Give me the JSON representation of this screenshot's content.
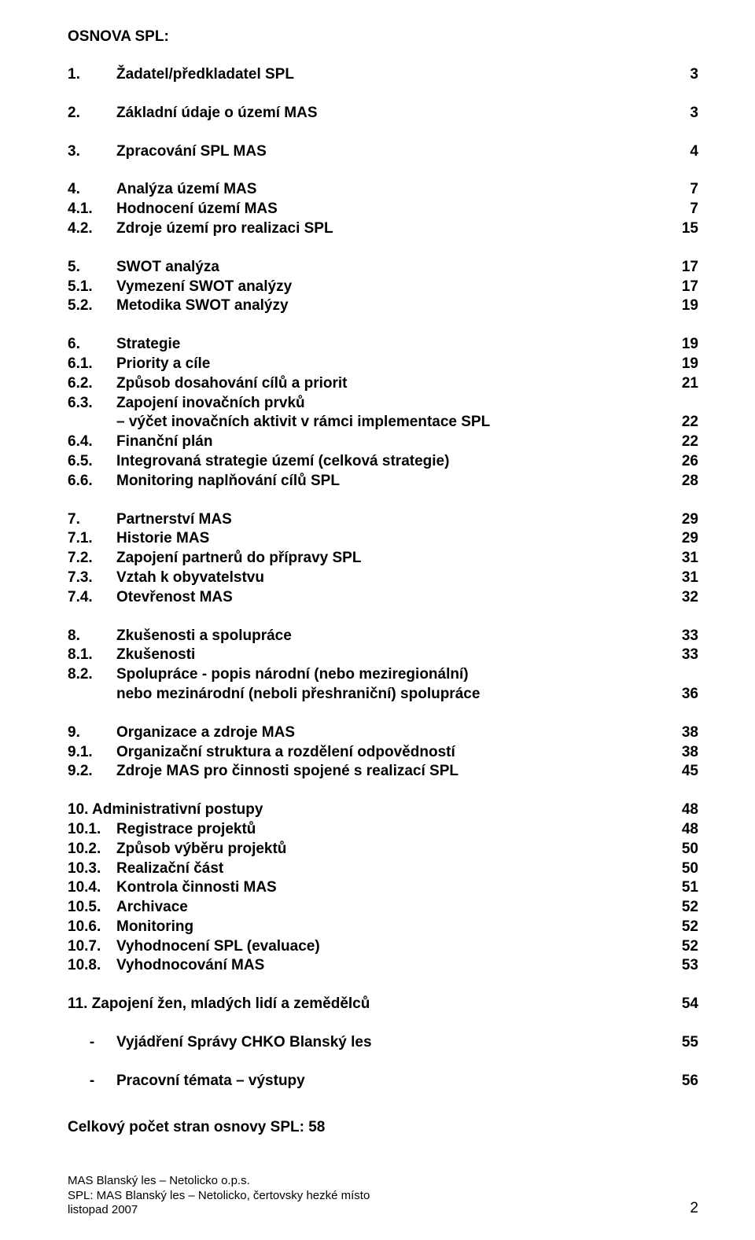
{
  "heading": "OSNOVA SPL:",
  "sections": [
    {
      "rows": [
        {
          "num": "1.",
          "label": "Žadatel/předkladatel SPL",
          "pg": "3"
        }
      ]
    },
    {
      "rows": [
        {
          "num": "2.",
          "label": "Základní údaje o území MAS",
          "pg": "3"
        }
      ]
    },
    {
      "rows": [
        {
          "num": "3.",
          "label": "Zpracování SPL MAS",
          "pg": "4"
        }
      ]
    },
    {
      "rows": [
        {
          "num": "4.",
          "label": "Analýza území MAS",
          "pg": "7"
        },
        {
          "num": "4.1.",
          "label": "Hodnocení území MAS",
          "pg": "7"
        },
        {
          "num": "4.2.",
          "label": "Zdroje území pro realizaci SPL",
          "pg": "15"
        }
      ]
    },
    {
      "rows": [
        {
          "num": "5.",
          "label": "SWOT analýza",
          "pg": "17"
        },
        {
          "num": "5.1.",
          "label": "Vymezení SWOT analýzy",
          "pg": "17"
        },
        {
          "num": "5.2.",
          "label": "Metodika SWOT analýzy",
          "pg": "19"
        }
      ]
    },
    {
      "rows": [
        {
          "num": "6.",
          "label": "Strategie",
          "pg": "19"
        },
        {
          "num": "6.1.",
          "label": "Priority a cíle",
          "pg": "19"
        },
        {
          "num": "6.2.",
          "label": "Způsob dosahování cílů a priorit",
          "pg": "21"
        },
        {
          "num": "6.3.",
          "label": "Zapojení inovačních prvků",
          "pg": ""
        },
        {
          "num": "",
          "label": "– výčet inovačních aktivit v rámci implementace SPL",
          "pg": "22"
        },
        {
          "num": "6.4.",
          "label": "Finanční plán",
          "pg": "22"
        },
        {
          "num": "6.5.",
          "label": "Integrovaná strategie území (celková strategie)",
          "pg": "26"
        },
        {
          "num": "6.6.",
          "label": "Monitoring naplňování cílů SPL",
          "pg": "28"
        }
      ]
    },
    {
      "rows": [
        {
          "num": "7.",
          "label": "Partnerství MAS",
          "pg": "29"
        },
        {
          "num": "7.1.",
          "label": "Historie MAS",
          "pg": "29"
        },
        {
          "num": "7.2.",
          "label": "Zapojení partnerů do přípravy SPL",
          "pg": "31"
        },
        {
          "num": "7.3.",
          "label": "Vztah k obyvatelstvu",
          "pg": "31"
        },
        {
          "num": "7.4.",
          "label": "Otevřenost MAS",
          "pg": "32"
        }
      ]
    },
    {
      "rows": [
        {
          "num": "8.",
          "label": "Zkušenosti a spolupráce",
          "pg": "33"
        },
        {
          "num": "8.1.",
          "label": "Zkušenosti",
          "pg": "33"
        },
        {
          "num": "8.2.",
          "label": "Spolupráce - popis národní (nebo meziregionální)",
          "pg": ""
        },
        {
          "num": "",
          "label": "nebo mezinárodní (neboli přeshraniční) spolupráce",
          "pg": "36"
        }
      ]
    },
    {
      "rows": [
        {
          "num": "9.",
          "label": "Organizace a zdroje MAS",
          "pg": "38"
        },
        {
          "num": "9.1.",
          "label": "Organizační struktura a rozdělení odpovědností",
          "pg": "38"
        },
        {
          "num": "9.2.",
          "label": "Zdroje MAS pro činnosti spojené s realizací SPL",
          "pg": "45"
        }
      ]
    },
    {
      "rows": [
        {
          "num": "",
          "label": "10. Administrativní postupy",
          "pg": "48",
          "noIndent": true
        },
        {
          "num": "10.1.",
          "label": "Registrace projektů",
          "pg": "48"
        },
        {
          "num": "10.2.",
          "label": "Způsob výběru projektů",
          "pg": "50"
        },
        {
          "num": "10.3.",
          "label": "Realizační část",
          "pg": "50"
        },
        {
          "num": "10.4.",
          "label": "Kontrola činnosti MAS",
          "pg": "51"
        },
        {
          "num": "10.5.",
          "label": "Archivace",
          "pg": "52"
        },
        {
          "num": "10.6.",
          "label": "Monitoring",
          "pg": "52"
        },
        {
          "num": "10.7.",
          "label": "Vyhodnocení SPL (evaluace)",
          "pg": "52"
        },
        {
          "num": "10.8.",
          "label": "Vyhodnocování MAS",
          "pg": "53"
        }
      ]
    },
    {
      "rows": [
        {
          "num": "",
          "label": "11. Zapojení žen, mladých lidí a zemědělců",
          "pg": "54",
          "noIndent": true
        }
      ]
    },
    {
      "rows": [
        {
          "bullet": "-",
          "label": "Vyjádření Správy CHKO Blanský les",
          "pg": "55"
        }
      ]
    },
    {
      "rows": [
        {
          "bullet": "-",
          "label": "Pracovní témata – výstupy",
          "pg": "56"
        }
      ]
    }
  ],
  "total_line": "Celkový počet stran osnovy SPL: 58",
  "footer": {
    "line1": "MAS Blanský les – Netolicko o.p.s.",
    "line2": "SPL: MAS Blanský les – Netolicko, čertovsky hezké místo",
    "line3": "listopad 2007",
    "page_number": "2"
  }
}
